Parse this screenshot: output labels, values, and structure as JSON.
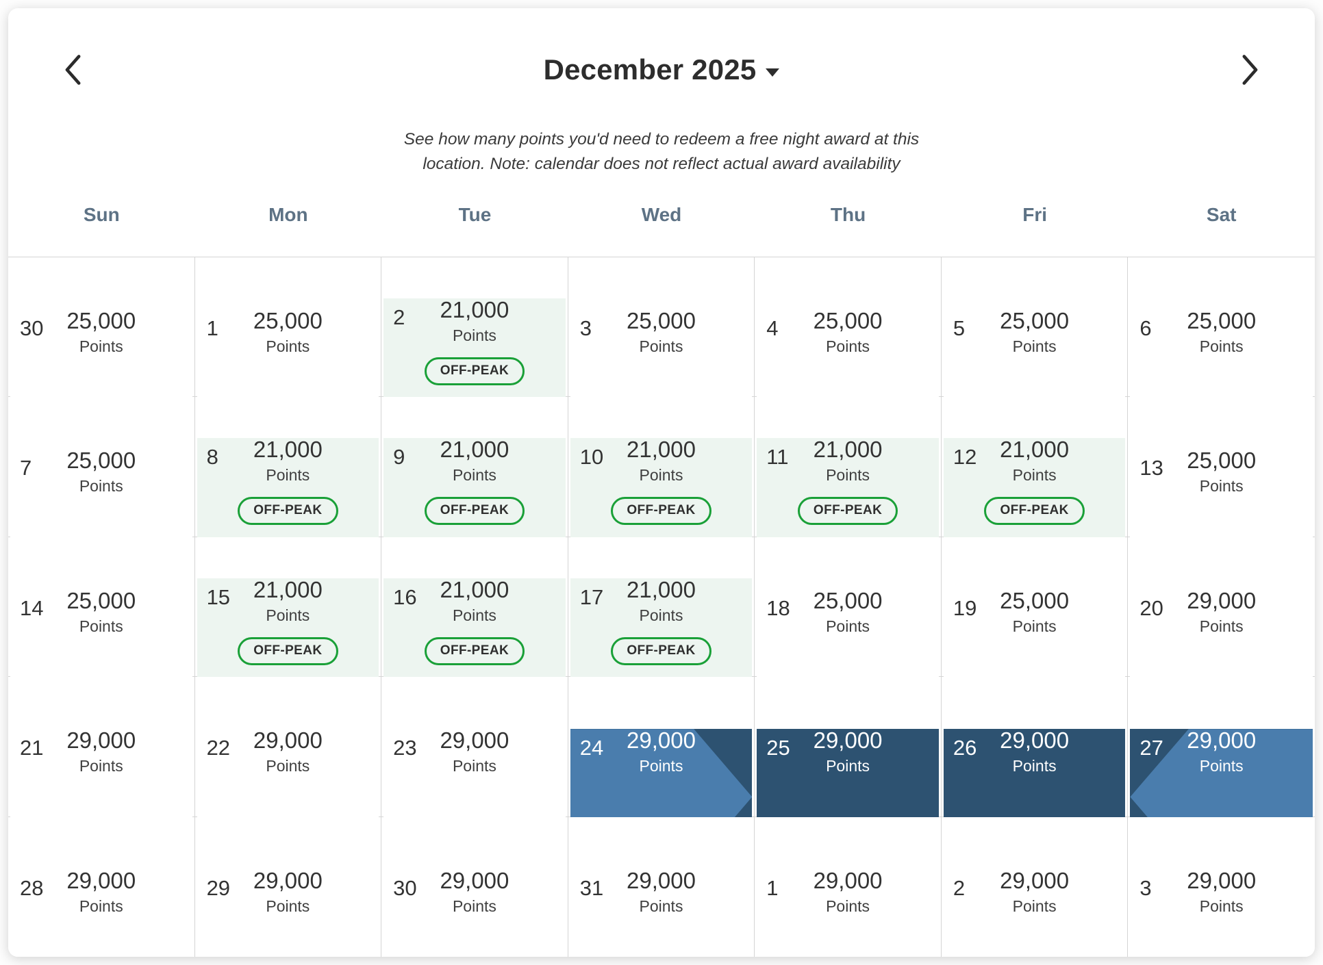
{
  "header": {
    "title": "December 2025",
    "note_line1": "See how many points you'd need to redeem a free night award at this",
    "note_line2": "location. Note: calendar does not reflect actual award availability"
  },
  "calendar": {
    "days_of_week": [
      "Sun",
      "Mon",
      "Tue",
      "Wed",
      "Thu",
      "Fri",
      "Sat"
    ],
    "points_label": "Points",
    "offpeak_badge_label": "OFF-PEAK",
    "weeks": [
      {
        "cells": [
          {
            "day": "30",
            "points": "25,000",
            "type": "standard",
            "badge": false
          },
          {
            "day": "1",
            "points": "25,000",
            "type": "standard",
            "badge": false
          },
          {
            "day": "2",
            "points": "21,000",
            "type": "offpeak",
            "badge": true
          },
          {
            "day": "3",
            "points": "25,000",
            "type": "standard",
            "badge": false
          },
          {
            "day": "4",
            "points": "25,000",
            "type": "standard",
            "badge": false
          },
          {
            "day": "5",
            "points": "25,000",
            "type": "standard",
            "badge": false
          },
          {
            "day": "6",
            "points": "25,000",
            "type": "standard",
            "badge": false
          }
        ]
      },
      {
        "cells": [
          {
            "day": "7",
            "points": "25,000",
            "type": "standard",
            "badge": false
          },
          {
            "day": "8",
            "points": "21,000",
            "type": "offpeak",
            "badge": true
          },
          {
            "day": "9",
            "points": "21,000",
            "type": "offpeak",
            "badge": true
          },
          {
            "day": "10",
            "points": "21,000",
            "type": "offpeak",
            "badge": true
          },
          {
            "day": "11",
            "points": "21,000",
            "type": "offpeak",
            "badge": true
          },
          {
            "day": "12",
            "points": "21,000",
            "type": "offpeak",
            "badge": true
          },
          {
            "day": "13",
            "points": "25,000",
            "type": "standard",
            "badge": false
          }
        ]
      },
      {
        "cells": [
          {
            "day": "14",
            "points": "25,000",
            "type": "standard",
            "badge": false
          },
          {
            "day": "15",
            "points": "21,000",
            "type": "offpeak",
            "badge": true
          },
          {
            "day": "16",
            "points": "21,000",
            "type": "offpeak",
            "badge": true
          },
          {
            "day": "17",
            "points": "21,000",
            "type": "offpeak",
            "badge": true
          },
          {
            "day": "18",
            "points": "25,000",
            "type": "standard",
            "badge": false
          },
          {
            "day": "19",
            "points": "25,000",
            "type": "standard",
            "badge": false
          },
          {
            "day": "20",
            "points": "29,000",
            "type": "standard",
            "badge": false
          }
        ]
      },
      {
        "cells": [
          {
            "day": "21",
            "points": "29,000",
            "type": "standard",
            "badge": false
          },
          {
            "day": "22",
            "points": "29,000",
            "type": "standard",
            "badge": false
          },
          {
            "day": "23",
            "points": "29,000",
            "type": "standard",
            "badge": false
          },
          {
            "day": "24",
            "points": "29,000",
            "type": "selected-start",
            "badge": false
          },
          {
            "day": "25",
            "points": "29,000",
            "type": "selected",
            "badge": false
          },
          {
            "day": "26",
            "points": "29,000",
            "type": "selected",
            "badge": false
          },
          {
            "day": "27",
            "points": "29,000",
            "type": "selected-end",
            "badge": false
          }
        ]
      },
      {
        "cells": [
          {
            "day": "28",
            "points": "29,000",
            "type": "standard",
            "badge": false
          },
          {
            "day": "29",
            "points": "29,000",
            "type": "standard",
            "badge": false
          },
          {
            "day": "30",
            "points": "29,000",
            "type": "standard",
            "badge": false
          },
          {
            "day": "31",
            "points": "29,000",
            "type": "standard",
            "badge": false
          },
          {
            "day": "1",
            "points": "29,000",
            "type": "standard",
            "badge": false
          },
          {
            "day": "2",
            "points": "29,000",
            "type": "standard",
            "badge": false
          },
          {
            "day": "3",
            "points": "29,000",
            "type": "standard",
            "badge": false
          }
        ]
      }
    ]
  },
  "colors": {
    "weekday_text": "#5d7285",
    "offpeak_bg": "#edf5f0",
    "offpeak_border": "#1aa038",
    "selected_bg": "#2d5271",
    "selected_arrow": "#4a7dad",
    "gridline": "#d4d4d4",
    "text_dark": "#333333"
  }
}
